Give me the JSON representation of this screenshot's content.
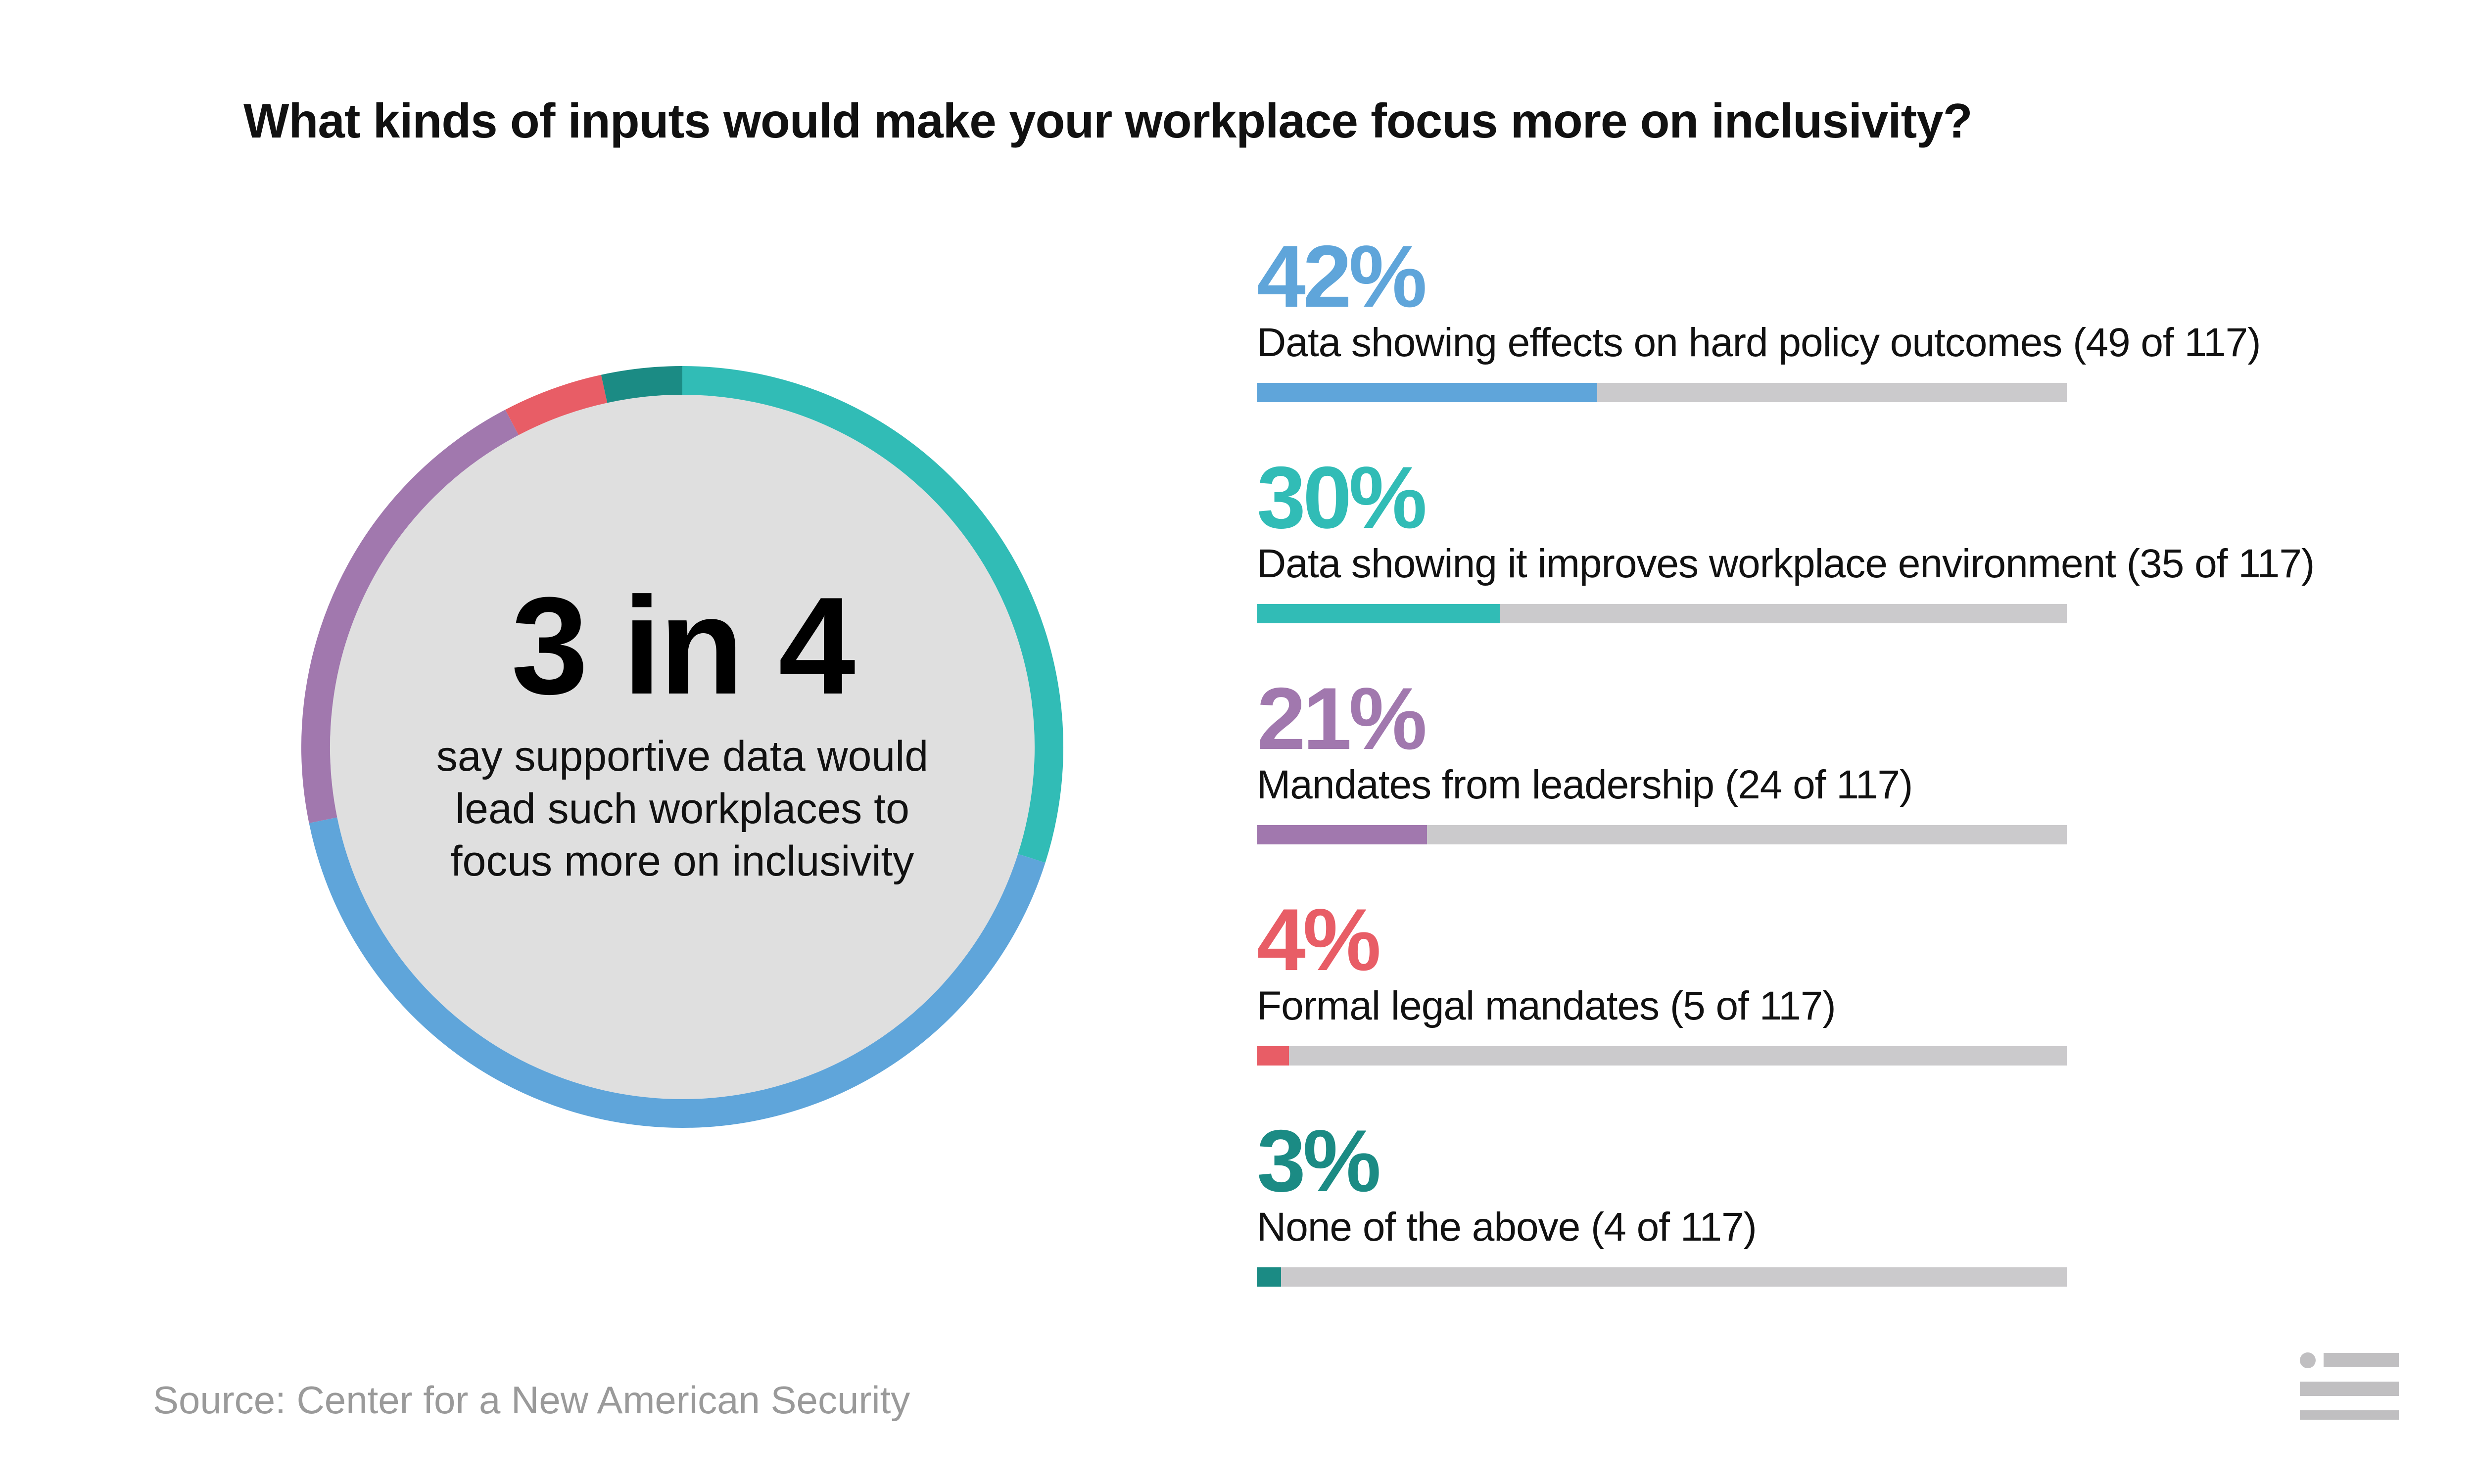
{
  "title": "What kinds of inputs would make your workplace focus more on inclusivity?",
  "center": {
    "headline": "3 in 4",
    "subtext": "say supportive data would lead such workplaces to focus more on inclusivity"
  },
  "source": "Source: Center for a New American Security",
  "colors": {
    "track": "#CBCACC",
    "circle_fill": "#DFDFDF",
    "logo": "#C0BFC1"
  },
  "chart_data": {
    "type": "bar",
    "total": 117,
    "items": [
      {
        "percent_label": "42%",
        "label": "Data showing effects on hard policy outcomes (49 of 117)",
        "count": 49,
        "value": 42,
        "color": "#5FA5DA"
      },
      {
        "percent_label": "30%",
        "label": "Data showing it improves workplace environment (35 of 117)",
        "count": 35,
        "value": 30,
        "color": "#31BCB6"
      },
      {
        "percent_label": "21%",
        "label": "Mandates from leadership (24 of 117)",
        "count": 24,
        "value": 21,
        "color": "#A178AE"
      },
      {
        "percent_label": "4%",
        "label": "Formal legal mandates (5 of 117)",
        "count": 5,
        "value": 4,
        "color": "#E85D66"
      },
      {
        "percent_label": "3%",
        "label": "None of the above (4 of 117)",
        "count": 4,
        "value": 3,
        "color": "#1B8B84"
      }
    ],
    "donut_order": [
      1,
      0,
      2,
      3,
      4
    ],
    "xlim": [
      0,
      100
    ]
  }
}
